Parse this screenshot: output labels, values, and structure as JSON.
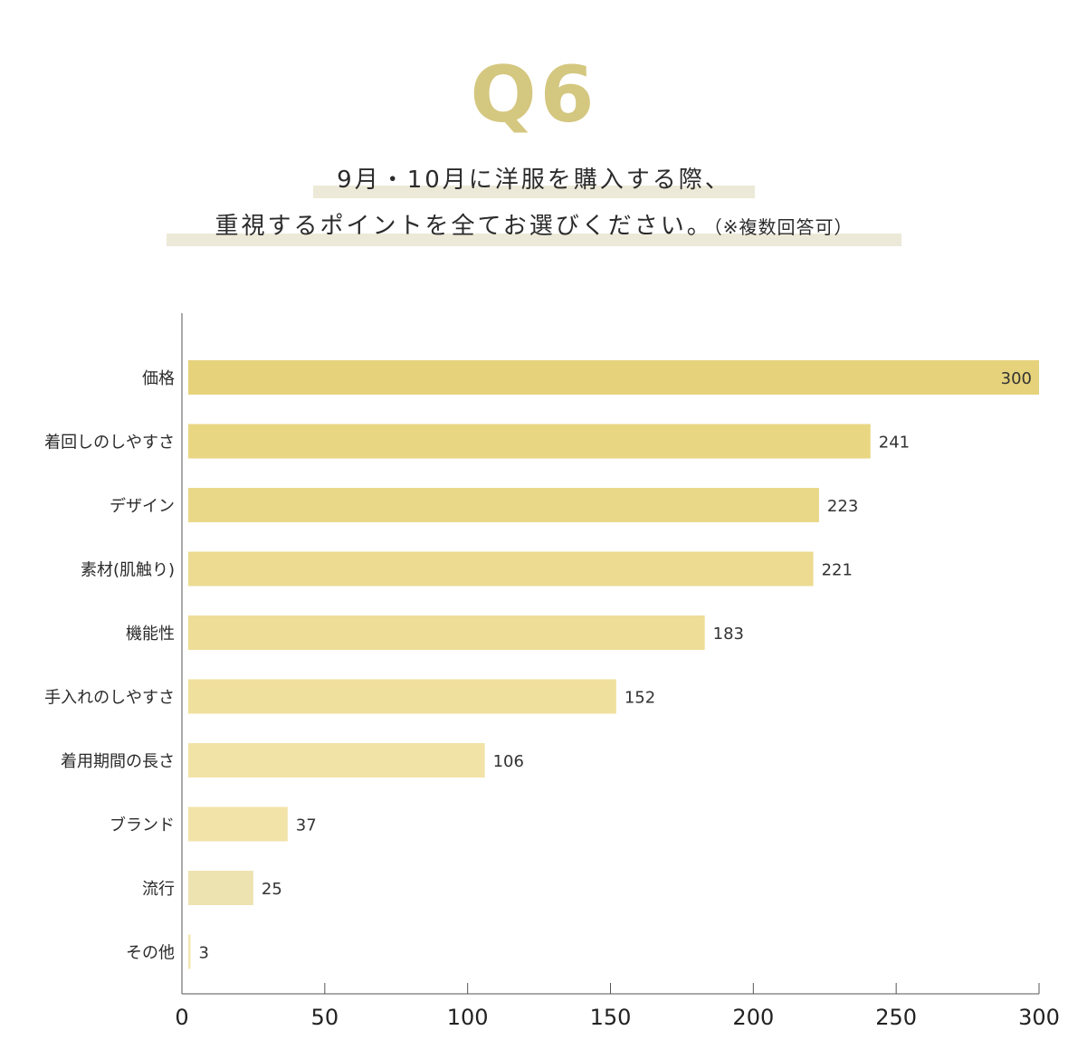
{
  "header": {
    "question_number": "Q6",
    "title_line1": "9月・10月に洋服を購入する際、",
    "title_line2": "重視するポイントを全てお選びください。",
    "title_note": "（※複数回答可）"
  },
  "chart_data": {
    "type": "bar",
    "orientation": "horizontal",
    "categories": [
      "価格",
      "着回しのしやすさ",
      "デザイン",
      "素材(肌触り)",
      "機能性",
      "手入れのしやすさ",
      "着用期間の長さ",
      "ブランド",
      "流行",
      "その他"
    ],
    "values": [
      300,
      241,
      223,
      221,
      183,
      152,
      106,
      37,
      25,
      3
    ],
    "xlim": [
      0,
      300
    ],
    "xticks": [
      0,
      50,
      100,
      150,
      200,
      250,
      300
    ],
    "grid": false,
    "legend": "none",
    "bar_colors": [
      "#e6d27a",
      "#e9d683",
      "#ead889",
      "#ecdb91",
      "#eddd96",
      "#efe09d",
      "#f1e3a6",
      "#f2e3a8",
      "#ede3b0",
      "#f3e6b2"
    ],
    "axis_color": "#555555",
    "value_label_color": "#333333"
  }
}
